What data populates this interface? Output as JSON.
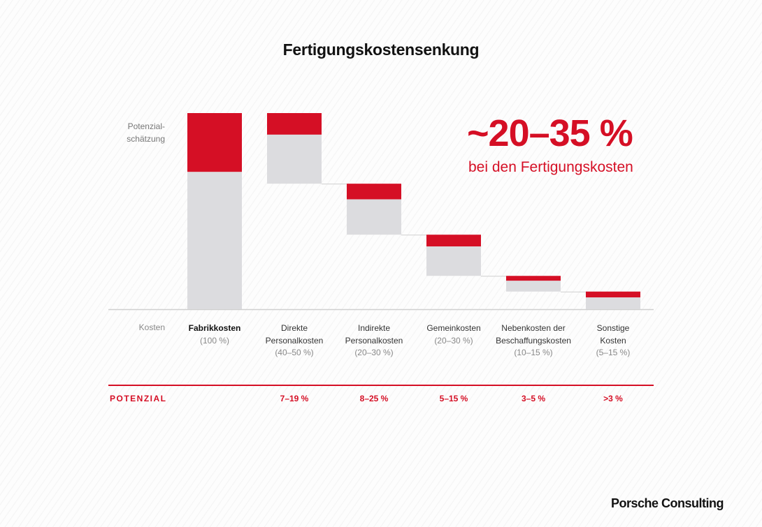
{
  "title": "Fertigungskostensenkung",
  "y_label": "Potenzial-\nschätzung",
  "headline": {
    "value": "~20–35 %",
    "subtitle": "bei den Fertigungskosten"
  },
  "row_labels": {
    "costs": "Kosten",
    "potential": "POTENZIAL"
  },
  "chart_data": {
    "type": "bar",
    "subtype": "waterfall",
    "title": "Fertigungskostensenkung",
    "categories": [
      "Fabrikkosten",
      "Direkte Personalkosten",
      "Indirekte Personalkosten",
      "Gemeinkosten",
      "Nebenkosten der Beschaffungskosten",
      "Sonstige Kosten"
    ],
    "category_ranges": [
      "(100 %)",
      "(40–50 %)",
      "(20–30 %)",
      "(20–30 %)",
      "(10–15 %)",
      "(5–15 %)"
    ],
    "potential_labels": [
      "",
      "7–19 %",
      "8–25 %",
      "5–15 %",
      "3–5 %",
      ">3 %"
    ],
    "series": [
      {
        "name": "Potenzialschätzung",
        "values": [
          30,
          11,
          8,
          6,
          2.5,
          3
        ]
      },
      {
        "values": [
          70,
          25,
          18,
          15,
          5.5,
          6
        ]
      }
    ],
    "ylim": [
      0,
      100
    ],
    "grid": false,
    "colors": {
      "potential": "#d50f25",
      "remaining": "#dcdcdf",
      "axis": "#cfcfcf"
    }
  },
  "brand": "Porsche Consulting"
}
